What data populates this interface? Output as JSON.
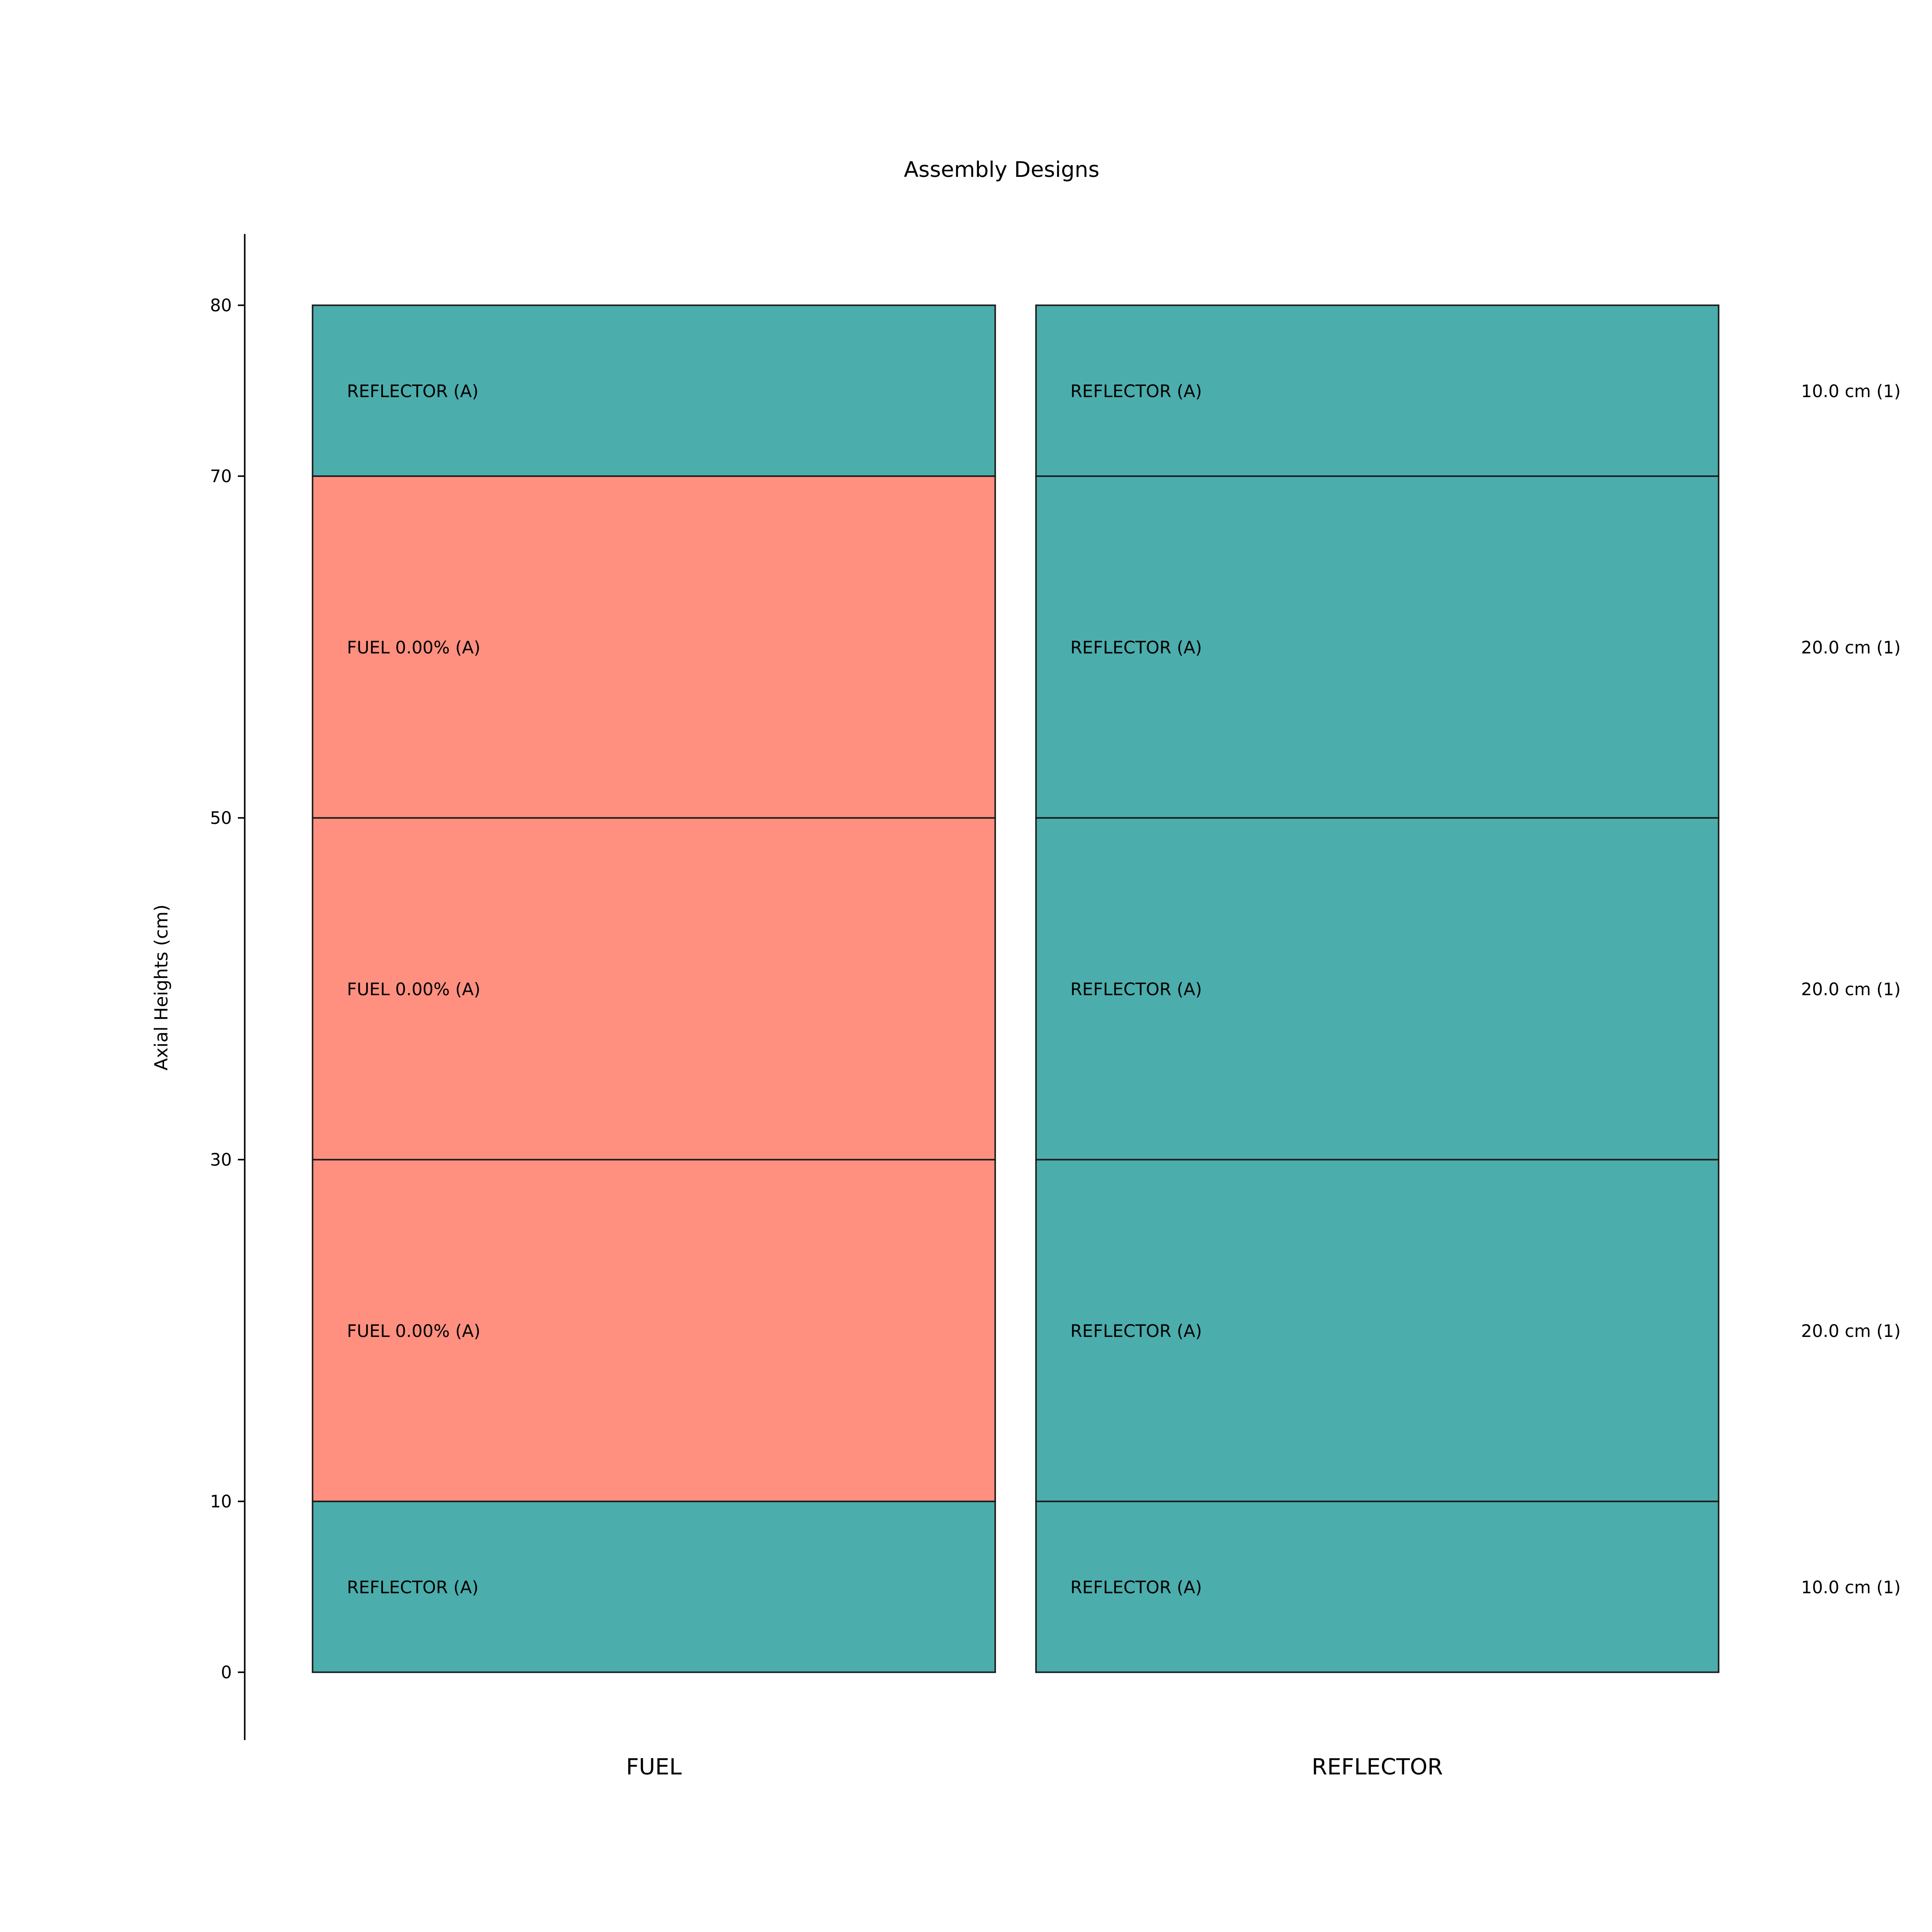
{
  "chart_data": {
    "type": "bar",
    "title": "Assembly Designs",
    "ylabel": "Axial Heights (cm)",
    "xlabel": "",
    "ylim": [
      -4,
      84
    ],
    "yticks": [
      0,
      10,
      30,
      50,
      70,
      80
    ],
    "grid": false,
    "legend": "none",
    "colors": {
      "FUEL": "#ff9080",
      "REFLECTOR": "#4badac",
      "edge": "#1a1a1a"
    },
    "assemblies": [
      {
        "name": "FUEL",
        "blocks": [
          {
            "bottom": 0,
            "top": 10,
            "label": "REFLECTOR (A)",
            "kind": "REFLECTOR"
          },
          {
            "bottom": 10,
            "top": 30,
            "label": "FUEL 0.00% (A)",
            "kind": "FUEL"
          },
          {
            "bottom": 30,
            "top": 50,
            "label": "FUEL 0.00% (A)",
            "kind": "FUEL"
          },
          {
            "bottom": 50,
            "top": 70,
            "label": "FUEL 0.00% (A)",
            "kind": "FUEL"
          },
          {
            "bottom": 70,
            "top": 80,
            "label": "REFLECTOR (A)",
            "kind": "REFLECTOR"
          }
        ]
      },
      {
        "name": "REFLECTOR",
        "blocks": [
          {
            "bottom": 0,
            "top": 10,
            "label": "REFLECTOR (A)",
            "kind": "REFLECTOR"
          },
          {
            "bottom": 10,
            "top": 30,
            "label": "REFLECTOR (A)",
            "kind": "REFLECTOR"
          },
          {
            "bottom": 30,
            "top": 50,
            "label": "REFLECTOR (A)",
            "kind": "REFLECTOR"
          },
          {
            "bottom": 50,
            "top": 70,
            "label": "REFLECTOR (A)",
            "kind": "REFLECTOR"
          },
          {
            "bottom": 70,
            "top": 80,
            "label": "REFLECTOR (A)",
            "kind": "REFLECTOR"
          }
        ]
      }
    ],
    "height_annotations": [
      {
        "bottom": 0,
        "top": 10,
        "label": "10.0 cm (1)"
      },
      {
        "bottom": 10,
        "top": 30,
        "label": "20.0 cm (1)"
      },
      {
        "bottom": 30,
        "top": 50,
        "label": "20.0 cm (1)"
      },
      {
        "bottom": 50,
        "top": 70,
        "label": "20.0 cm (1)"
      },
      {
        "bottom": 70,
        "top": 80,
        "label": "10.0 cm (1)"
      }
    ]
  }
}
